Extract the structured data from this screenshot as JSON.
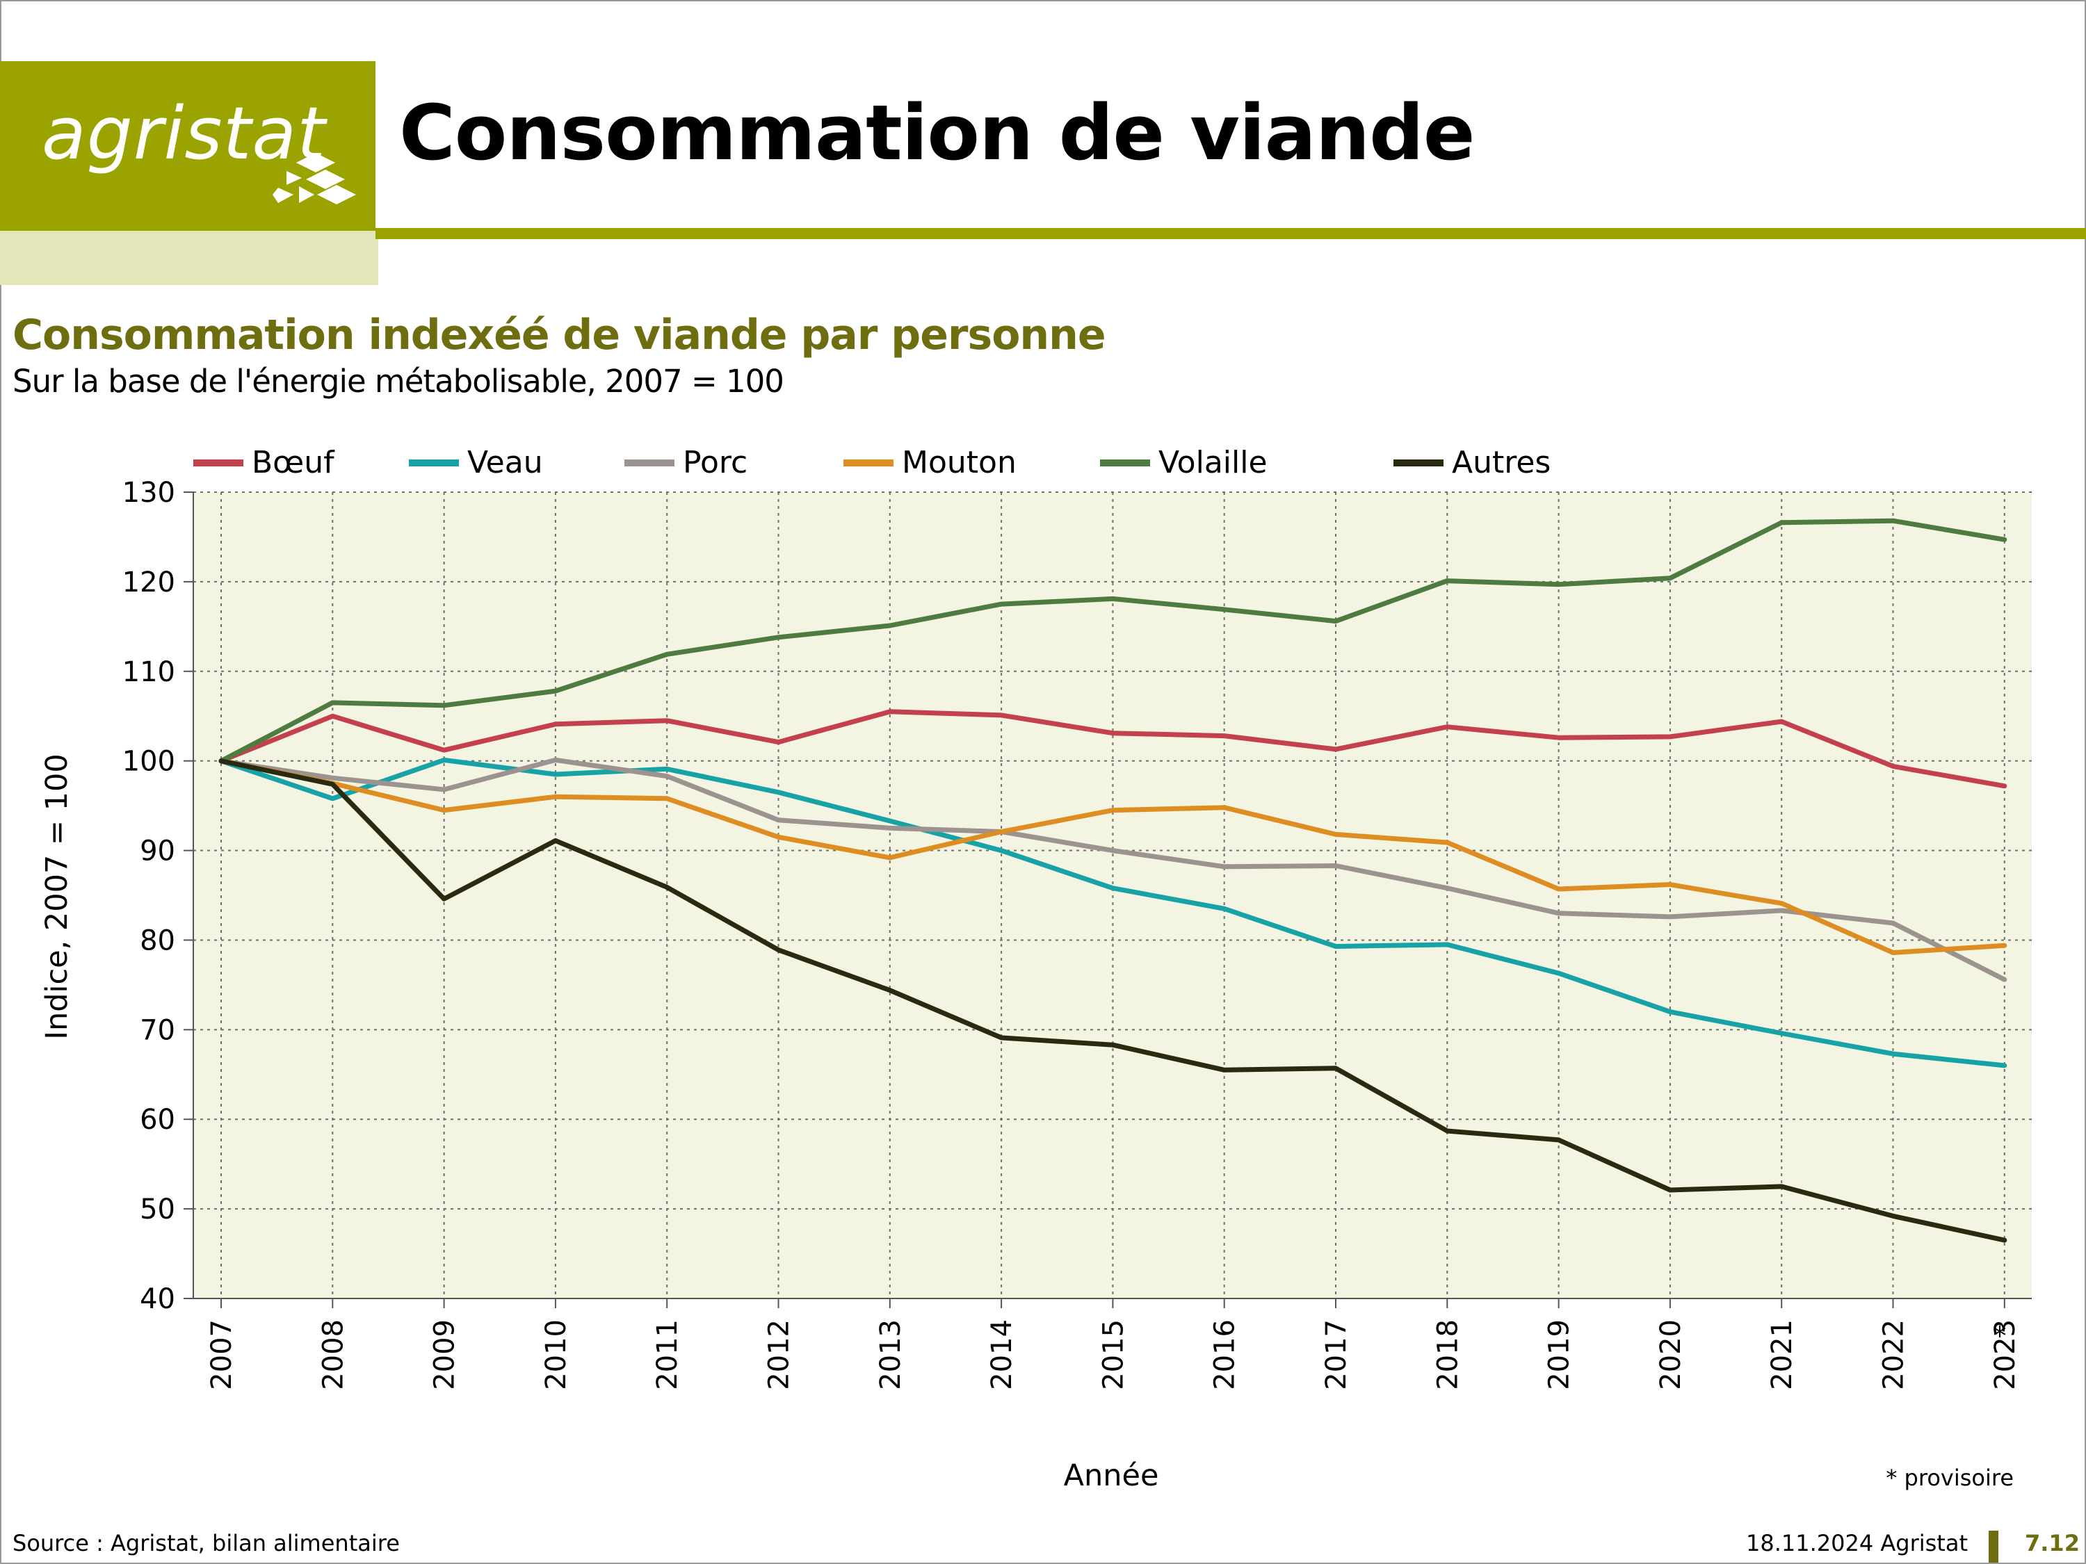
{
  "brand": {
    "name": "agristat",
    "color_primary": "#9aa300",
    "color_light": "#e3e6b8",
    "color_dark": "#6e6e10"
  },
  "header": {
    "title": "Consommation de viande"
  },
  "chart_title": "Consommation indexéé de viande par personne",
  "chart_subtitle": "Sur la base de l'énergie métabolisable, 2007 = 100",
  "chart_data": {
    "type": "line",
    "xlabel": "Année",
    "ylabel": "Indice, 2007 = 100",
    "ylim": [
      40,
      130
    ],
    "yticks": [
      40,
      50,
      60,
      70,
      80,
      90,
      100,
      110,
      120,
      130
    ],
    "grid": true,
    "legend_position": "top",
    "plot_background": "#f3f4e2",
    "categories": [
      "2007",
      "2008",
      "2009",
      "2010",
      "2011",
      "2012",
      "2013",
      "2014",
      "2015",
      "2016",
      "2017",
      "2018",
      "2019",
      "2020",
      "2021",
      "2022",
      "2023"
    ],
    "provisional_marker": "*",
    "provisional_year": "2023",
    "series": [
      {
        "name": "Bœuf",
        "color": "#c4404c",
        "values": [
          100,
          105.0,
          101.2,
          104.1,
          104.5,
          102.1,
          105.5,
          105.1,
          103.1,
          102.8,
          101.3,
          103.8,
          102.6,
          102.7,
          104.4,
          99.4,
          97.2
        ]
      },
      {
        "name": "Veau",
        "color": "#17a3a6",
        "values": [
          100,
          95.8,
          100.1,
          98.5,
          99.1,
          96.5,
          93.3,
          90.0,
          85.8,
          83.5,
          79.3,
          79.5,
          76.3,
          72.0,
          69.6,
          67.3,
          66.0
        ]
      },
      {
        "name": "Porc",
        "color": "#9c9290",
        "values": [
          100,
          98.1,
          96.8,
          100.1,
          98.3,
          93.4,
          92.5,
          92.1,
          90.0,
          88.2,
          88.3,
          85.8,
          83.0,
          82.6,
          83.3,
          81.9,
          75.6
        ]
      },
      {
        "name": "Mouton",
        "color": "#de8d22",
        "values": [
          100,
          97.5,
          94.5,
          96.0,
          95.8,
          91.5,
          89.2,
          92.1,
          94.5,
          94.8,
          91.8,
          90.9,
          85.7,
          86.2,
          84.1,
          78.6,
          79.4
        ]
      },
      {
        "name": "Volaille",
        "color": "#4e7b3f",
        "values": [
          100,
          106.5,
          106.2,
          107.8,
          111.9,
          113.8,
          115.1,
          117.5,
          118.1,
          116.9,
          115.6,
          120.1,
          119.7,
          120.4,
          126.6,
          126.8,
          124.7
        ]
      },
      {
        "name": "Autres",
        "color": "#2a2a10",
        "values": [
          100,
          97.4,
          84.6,
          91.1,
          85.9,
          78.9,
          74.4,
          69.1,
          68.3,
          65.5,
          65.7,
          58.7,
          57.7,
          52.1,
          52.5,
          49.2,
          46.5
        ]
      }
    ]
  },
  "notes": {
    "provisional": "* provisoire"
  },
  "footer": {
    "source": "Source : Agristat, bilan alimentaire",
    "date": "18.11.2024 Agristat",
    "page": "7.12"
  }
}
